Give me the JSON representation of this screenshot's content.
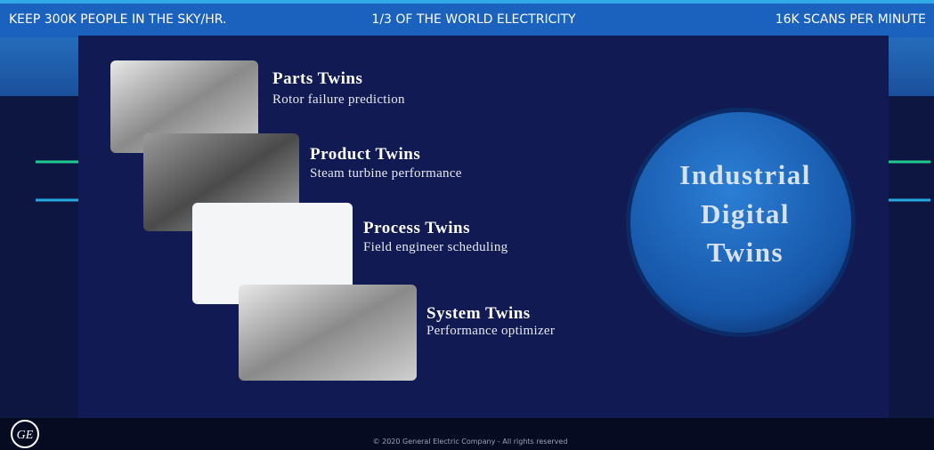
{
  "header": {
    "items": [
      "KEEP 300K PEOPLE IN THE SKY/HR.",
      "1/3 OF THE WORLD ELECTRICITY",
      "16K SCANS PER MINUTE"
    ]
  },
  "twins": [
    {
      "title": "Parts Twins",
      "subtitle": "Rotor failure prediction"
    },
    {
      "title": "Product Twins",
      "subtitle": "Steam turbine performance"
    },
    {
      "title": "Process Twins",
      "subtitle": "Field engineer scheduling"
    },
    {
      "title": "System Twins",
      "subtitle": "Performance optimizer"
    }
  ],
  "circle": {
    "lines": [
      "Industrial",
      "Digital",
      "Twins"
    ]
  },
  "footer": {
    "logo": "GE",
    "copyright": "© 2020 General Electric Company - All rights reserved"
  }
}
